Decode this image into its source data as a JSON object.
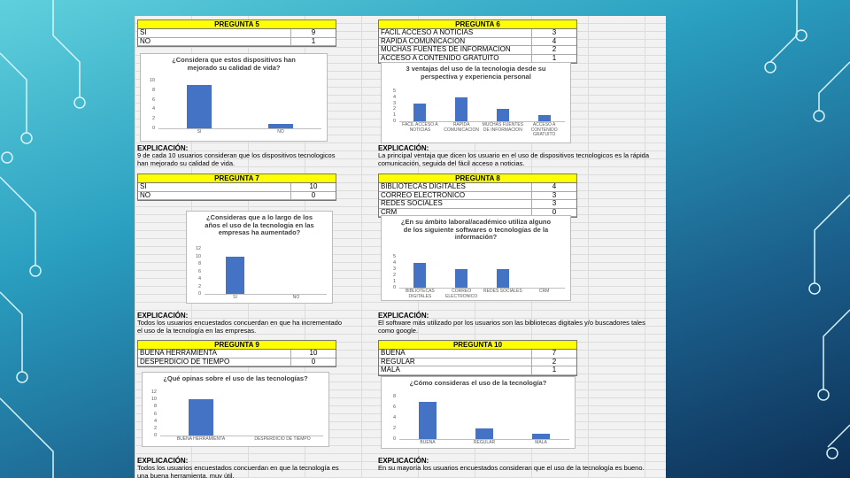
{
  "panels": [
    {
      "header": "PREGUNTA 5",
      "rows": [
        {
          "label": "SI",
          "value": 9
        },
        {
          "label": "NO",
          "value": 1
        }
      ],
      "chart": {
        "type": "bar",
        "title": "¿Considera que estos dispositivos han mejorado su calidad de vida?",
        "categories": [
          "SI",
          "NO"
        ],
        "color": "#4472c4",
        "ylim": [
          0,
          10
        ],
        "yticks": [
          0,
          2,
          4,
          6,
          8,
          10
        ]
      },
      "explanation_title": "EXPLICACIÓN:",
      "explanation": "9 de cada 10 usuarios consideran que los dispositivos tecnologicos han mejorado su calidad de vida."
    },
    {
      "header": "PREGUNTA 6",
      "rows": [
        {
          "label": "FACIL ACCESO A NOTICIAS",
          "value": 3
        },
        {
          "label": "RAPIDA COMUNICACIÓN",
          "value": 4
        },
        {
          "label": "MUCHAS FUENTES DE INFORMACIÓN",
          "value": 2
        },
        {
          "label": "ACCESO A CONTENIDO GRATUITO",
          "value": 1
        }
      ],
      "chart": {
        "type": "bar",
        "title": "3 ventajas del uso de la tecnologia desde su perspectiva y experiencia personal",
        "categories": [
          "FACIL ACCESO A NOTICIAS",
          "RAPIDA COMUNICACION",
          "MUCHAS FUENTES DE INFORMACION",
          "ACCESO A CONTENIDO GRATUITO"
        ],
        "color": "#4472c4",
        "ylim": [
          0,
          5
        ],
        "yticks": [
          0,
          1,
          2,
          3,
          4,
          5
        ]
      },
      "explanation_title": "EXPLICACIÓN:",
      "explanation": "La principal ventaja que dicen los usuario en el uso de dispositivos tecnologicos es la rápida comunicación, seguida del fácil acceso a noticias."
    },
    {
      "header": "PREGUNTA 7",
      "rows": [
        {
          "label": "SI",
          "value": 10
        },
        {
          "label": "NO",
          "value": 0
        }
      ],
      "chart": {
        "type": "bar",
        "title": "¿Consideras que a lo largo de los años el uso de la tecnologia en las empresas ha aumentado?",
        "categories": [
          "SI",
          "NO"
        ],
        "color": "#4472c4",
        "ylim": [
          0,
          12
        ],
        "yticks": [
          0,
          2,
          4,
          6,
          8,
          10,
          12
        ]
      },
      "explanation_title": "EXPLICACIÓN:",
      "explanation": "Todos los usuarios encuestados concuerdan en que ha incrementado el uso de la tecnología en las empresas."
    },
    {
      "header": "PREGUNTA 8",
      "rows": [
        {
          "label": "BIBLIOTECAS DIGITALES",
          "value": 4
        },
        {
          "label": "CORREO ELECTRONICO",
          "value": 3
        },
        {
          "label": "REDES SOCIALES",
          "value": 3
        },
        {
          "label": "CRM",
          "value": 0
        }
      ],
      "chart": {
        "type": "bar",
        "title": "¿En su ámbito laboral/académico utiliza alguno de los siguiente softwares o tecnologías de la información?",
        "categories": [
          "BIBLIOTECAS DIGITALES",
          "CORREO ELECTRONICO",
          "REDES SOCIALES",
          "CRM"
        ],
        "color": "#4472c4",
        "ylim": [
          0,
          5
        ],
        "yticks": [
          0,
          1,
          2,
          3,
          4,
          5
        ]
      },
      "explanation_title": "EXPLICACIÓN:",
      "explanation": "El software más utilizado por los usuarios son las bibliotecas digitales y/o buscadores tales como google."
    },
    {
      "header": "PREGUNTA 9",
      "rows": [
        {
          "label": "BUENA HERRAMIENTA",
          "value": 10
        },
        {
          "label": "DESPERDICIO DE TIEMPO",
          "value": 0
        }
      ],
      "chart": {
        "type": "bar",
        "title": "¿Qué opinas sobre el uso de las tecnologías?",
        "categories": [
          "BUENA HERRAMIENTA",
          "DESPERDICIO DE TIEMPO"
        ],
        "color": "#4472c4",
        "ylim": [
          0,
          12
        ],
        "yticks": [
          0,
          2,
          4,
          6,
          8,
          10,
          12
        ]
      },
      "explanation_title": "EXPLICACIÓN:",
      "explanation": "Todos los usuarios encuestados concuerdan en que la tecnología es una buena herramienta, muy útil."
    },
    {
      "header": "PREGUNTA 10",
      "rows": [
        {
          "label": "BUENA",
          "value": 7
        },
        {
          "label": "REGULAR",
          "value": 2
        },
        {
          "label": "MALA",
          "value": 1
        }
      ],
      "chart": {
        "type": "bar",
        "title": "¿Cómo consideras el uso de la tecnología?",
        "categories": [
          "BUENA",
          "REGULAR",
          "MALA"
        ],
        "color": "#4472c4",
        "ylim": [
          0,
          8
        ],
        "yticks": [
          0,
          2,
          4,
          6,
          8
        ]
      },
      "explanation_title": "EXPLICACIÓN:",
      "explanation": "En su mayoría los usuarios encuestados consideran que el uso de la tecnología es bueno."
    }
  ]
}
